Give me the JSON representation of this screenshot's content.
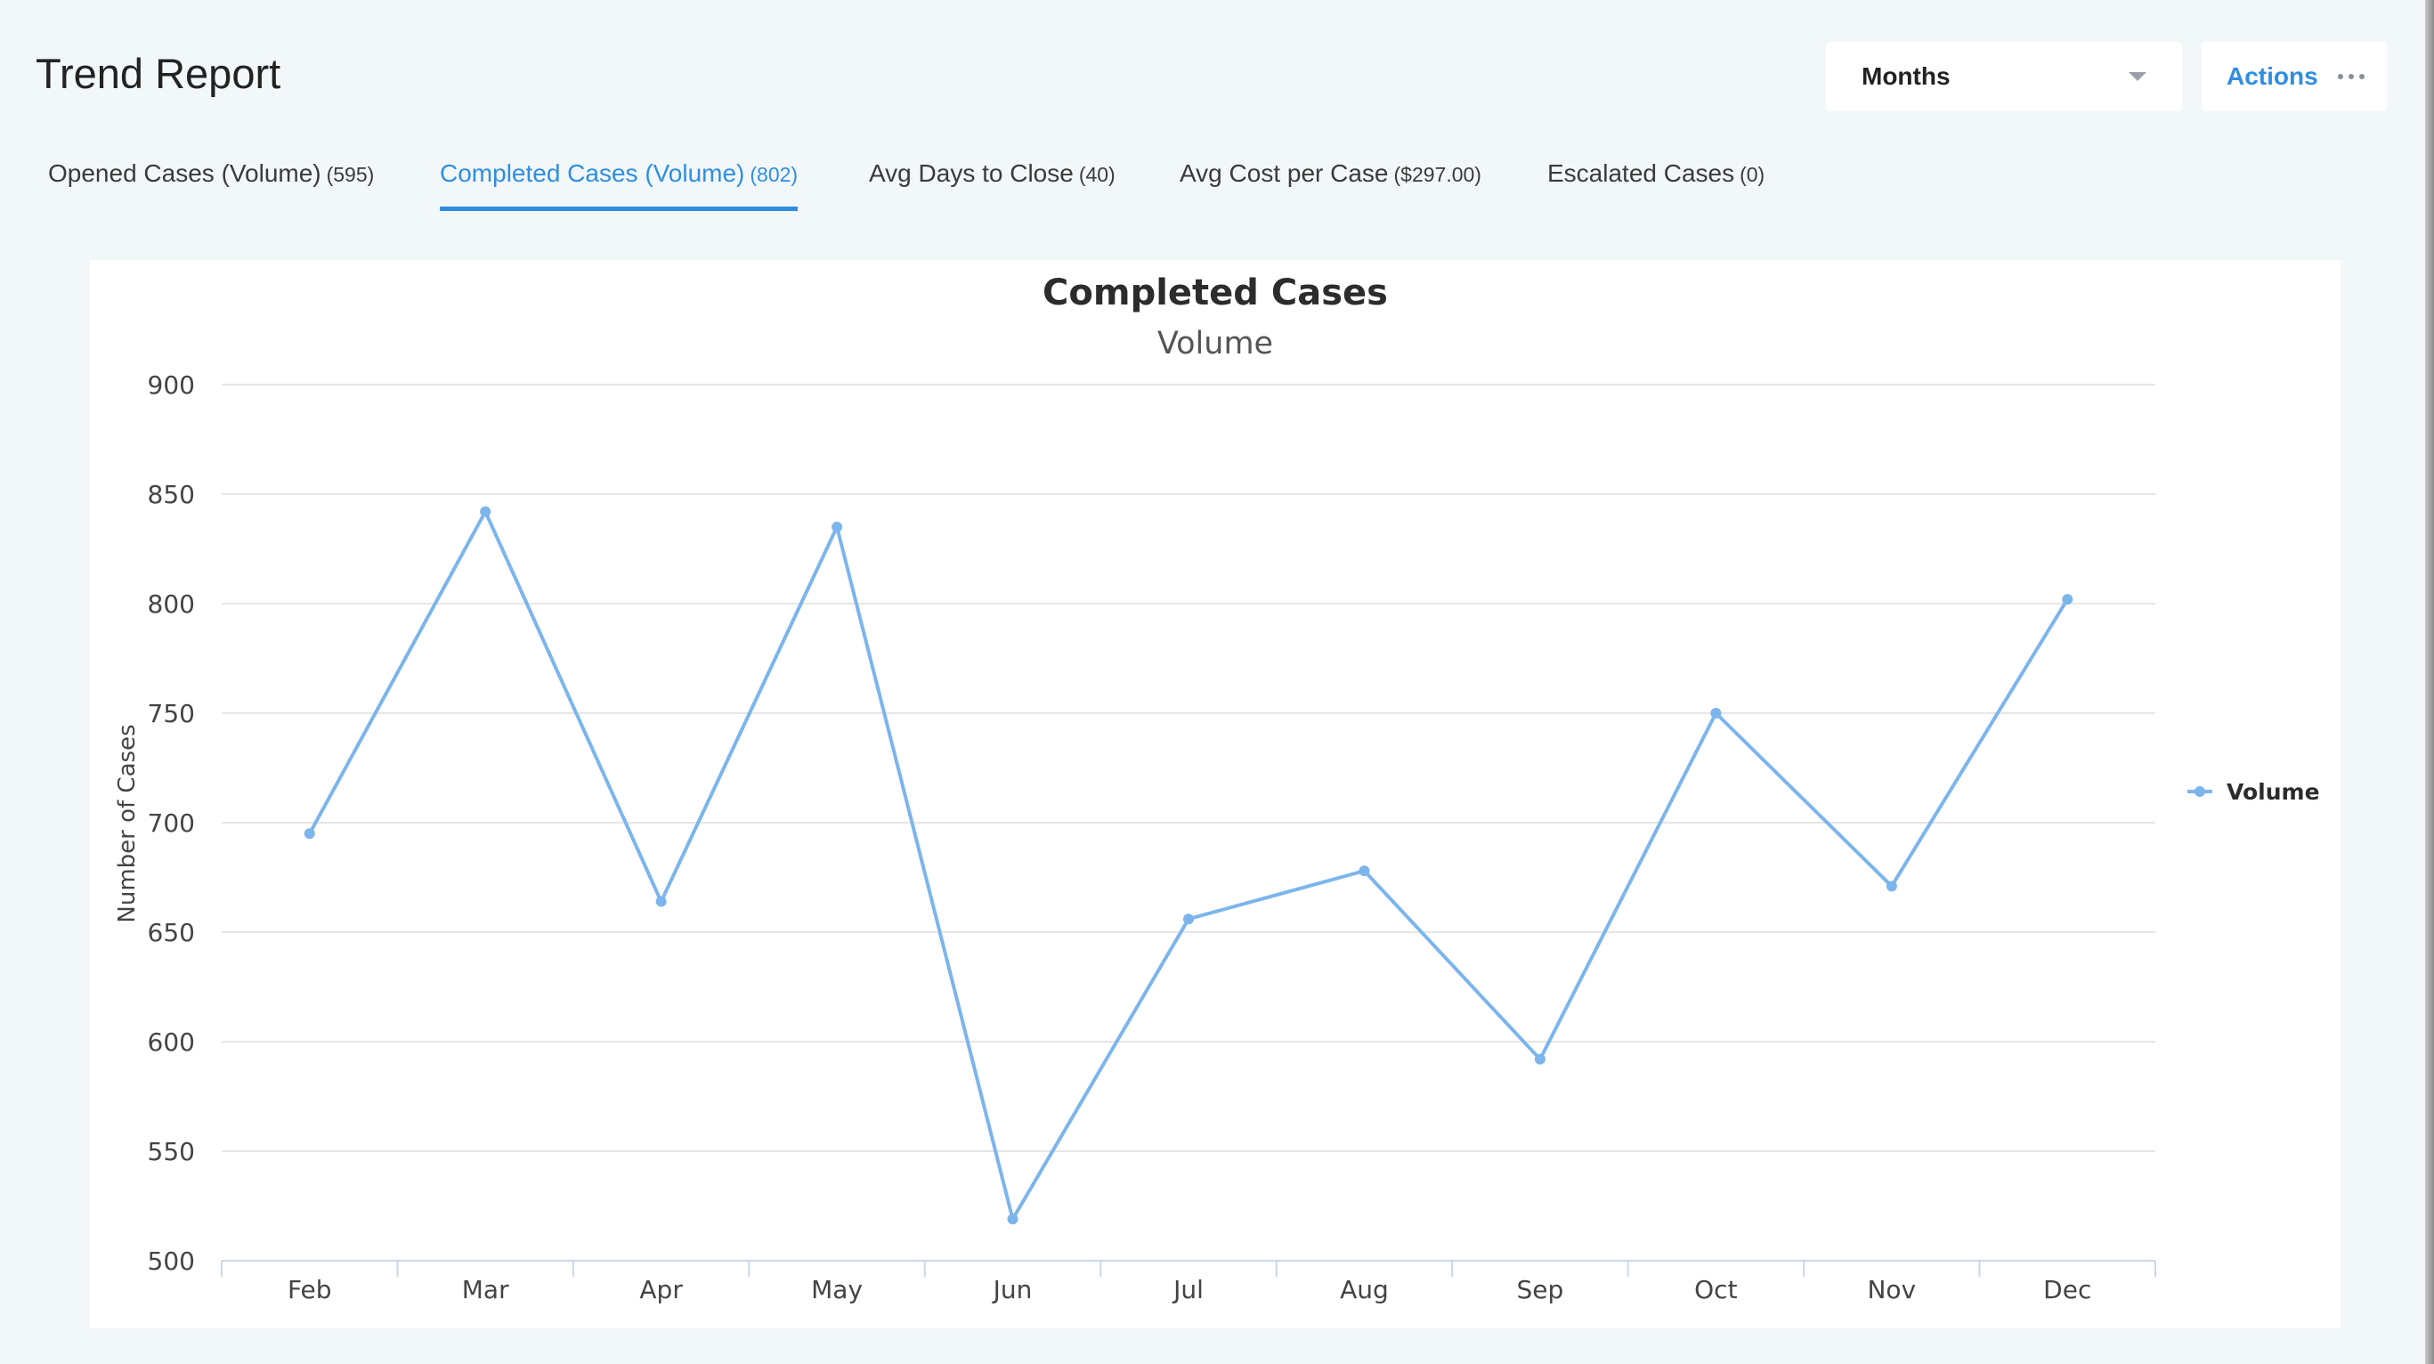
{
  "header": {
    "title": "Trend Report",
    "period_select": {
      "value": "Months"
    },
    "actions_label": "Actions"
  },
  "tabs": [
    {
      "label": "Opened Cases (Volume)",
      "count": "(595)",
      "active": false
    },
    {
      "label": "Completed Cases (Volume)",
      "count": "(802)",
      "active": true
    },
    {
      "label": "Avg Days to Close",
      "count": "(40)",
      "active": false
    },
    {
      "label": "Avg Cost per Case",
      "count": "($297.00)",
      "active": false
    },
    {
      "label": "Escalated Cases",
      "count": "(0)",
      "active": false
    }
  ],
  "chart_data": {
    "type": "line",
    "title": "Completed Cases",
    "subtitle": "Volume",
    "xlabel": "",
    "ylabel": "Number of Cases",
    "categories": [
      "Feb",
      "Mar",
      "Apr",
      "May",
      "Jun",
      "Jul",
      "Aug",
      "Sep",
      "Oct",
      "Nov",
      "Dec"
    ],
    "yticks": [
      500,
      550,
      600,
      650,
      700,
      750,
      800,
      850,
      900
    ],
    "ylim": [
      500,
      900
    ],
    "grid": true,
    "legend": "right",
    "series": [
      {
        "name": "Volume",
        "color": "#7cb5ec",
        "values": [
          695,
          842,
          664,
          835,
          519,
          656,
          678,
          592,
          750,
          671,
          802
        ]
      }
    ]
  }
}
